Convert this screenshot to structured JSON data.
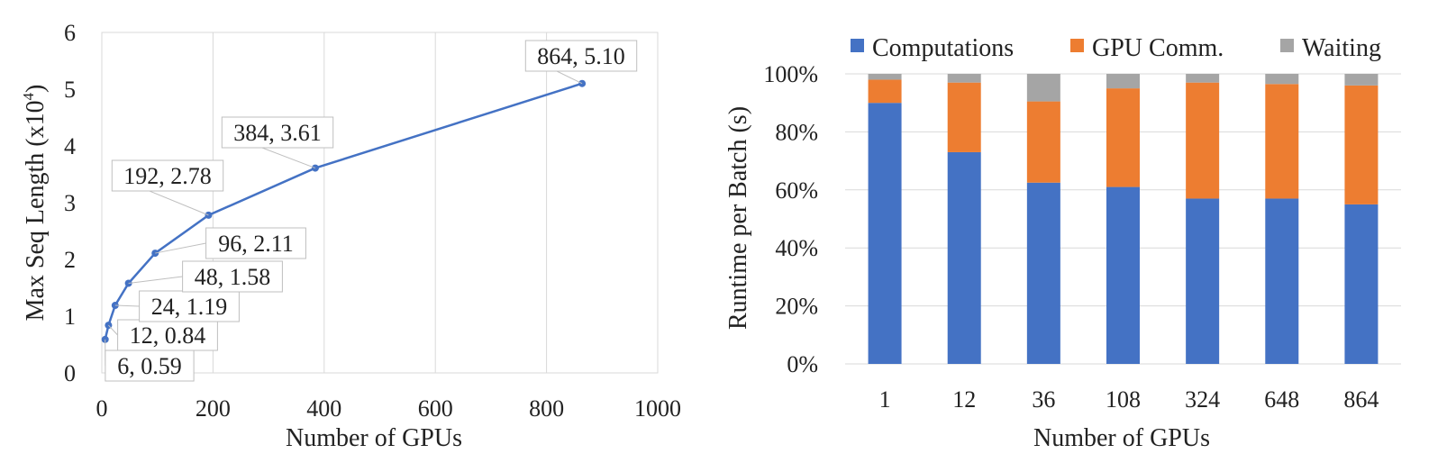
{
  "charts": [
    {
      "type": "line",
      "xlabel": "Number of GPUs",
      "ylabel": "Max Seq Length (x10",
      "ylabel_sup": "4",
      "ylabel_close": ")",
      "xlim": [
        0,
        1000
      ],
      "ylim": [
        0,
        6
      ],
      "xticks": [
        "0",
        "200",
        "400",
        "600",
        "800",
        "1000"
      ],
      "yticks": [
        "0",
        "1",
        "2",
        "3",
        "4",
        "5",
        "6"
      ],
      "grid": "vertical",
      "color": "#4472C4",
      "points": [
        {
          "x": 6,
          "y": 0.59,
          "label": "6, 0.59"
        },
        {
          "x": 12,
          "y": 0.84,
          "label": "12, 0.84"
        },
        {
          "x": 24,
          "y": 1.19,
          "label": "24, 1.19"
        },
        {
          "x": 48,
          "y": 1.58,
          "label": "48, 1.58"
        },
        {
          "x": 96,
          "y": 2.11,
          "label": "96, 2.11"
        },
        {
          "x": 192,
          "y": 2.78,
          "label": "192, 2.78"
        },
        {
          "x": 384,
          "y": 3.61,
          "label": "384, 3.61"
        },
        {
          "x": 864,
          "y": 5.1,
          "label": "864, 5.10"
        }
      ]
    },
    {
      "type": "bar",
      "stacked": "percent",
      "xlabel": "Number of GPUs",
      "ylabel": "Runtime per Batch (s)",
      "categories": [
        "1",
        "12",
        "36",
        "108",
        "324",
        "648",
        "864"
      ],
      "yticks": [
        "0%",
        "20%",
        "40%",
        "60%",
        "80%",
        "100%"
      ],
      "ylim": [
        0,
        100
      ],
      "legend_position": "top",
      "grid": "horizontal",
      "series": [
        {
          "name": "Computations",
          "color": "#4472C4",
          "values": [
            90,
            73,
            62.5,
            61,
            57,
            57,
            55
          ]
        },
        {
          "name": "GPU Comm.",
          "color": "#ED7D31",
          "values": [
            8,
            24,
            28,
            34,
            40,
            39.5,
            41
          ]
        },
        {
          "name": "Waiting",
          "color": "#A5A5A5",
          "values": [
            2,
            3,
            9.5,
            5,
            3,
            3.5,
            4
          ]
        }
      ]
    }
  ]
}
